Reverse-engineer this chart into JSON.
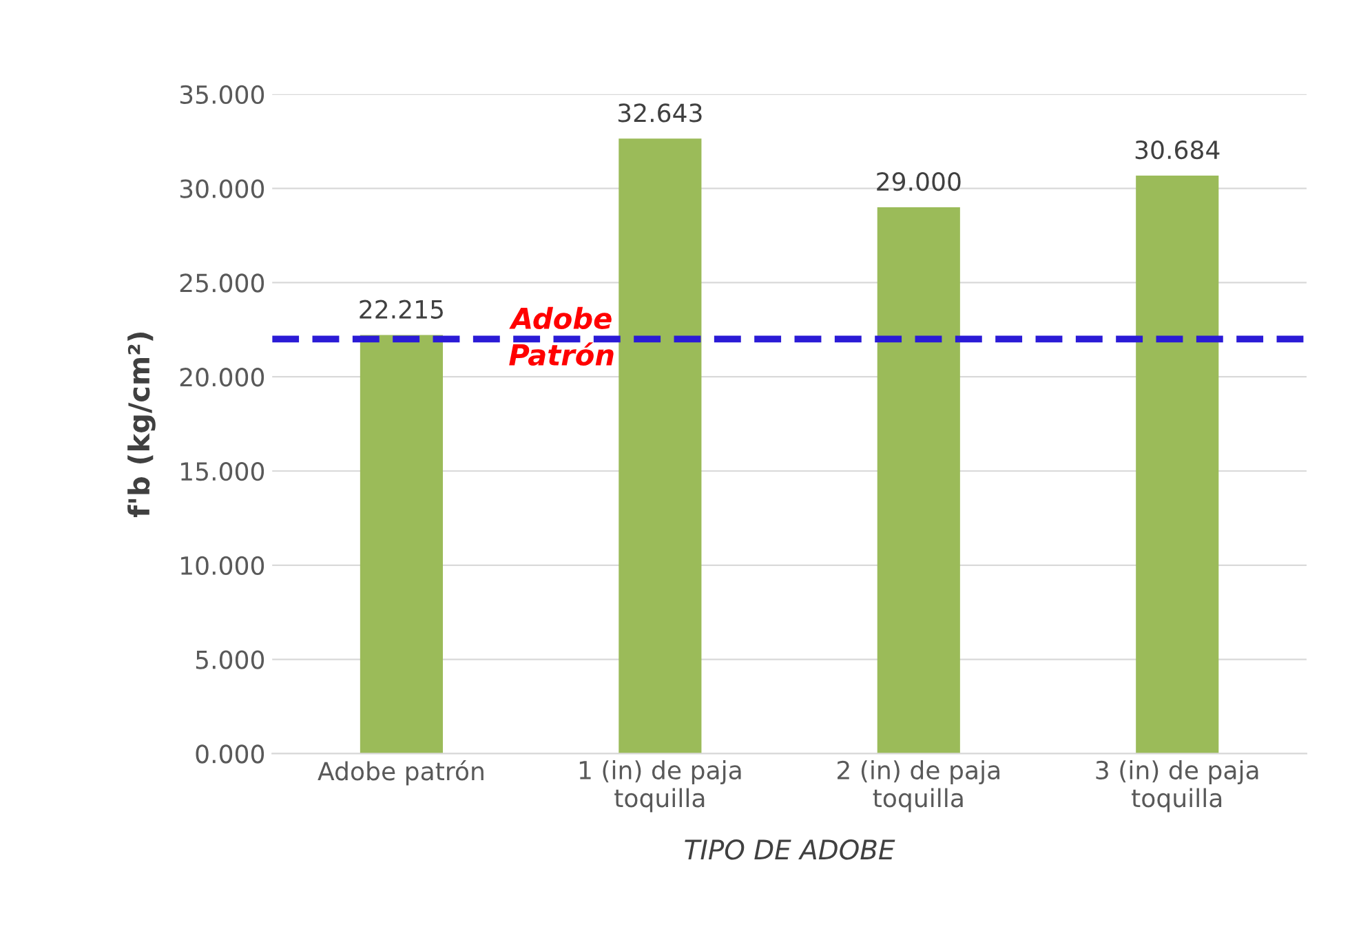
{
  "chart_data": {
    "type": "bar",
    "xlabel": "TIPO DE ADOBE",
    "ylabel": "f'b (kg/cm²)",
    "categories": [
      "Adobe patrón",
      "1 (in) de paja\ntoquilla",
      "2 (in) de paja\ntoquilla",
      "3 (in) de paja\ntoquilla"
    ],
    "values": [
      22.215,
      32.643,
      29.0,
      30.684
    ],
    "value_labels": [
      "22.215",
      "32.643",
      "29.000",
      "30.684"
    ],
    "color": "#9bbb59",
    "ylim": [
      0,
      35
    ],
    "yticks": [
      {
        "value": 0,
        "label": "0.000"
      },
      {
        "value": 5,
        "label": "5.000"
      },
      {
        "value": 10,
        "label": "10.000"
      },
      {
        "value": 15,
        "label": "15.000"
      },
      {
        "value": 20,
        "label": "20.000"
      },
      {
        "value": 25,
        "label": "25.000"
      },
      {
        "value": 30,
        "label": "30.000"
      },
      {
        "value": 35,
        "label": "35.000"
      }
    ],
    "grid": "y",
    "ref_lines": [
      {
        "axis": "y",
        "value": 22,
        "label": "Adobe\nPatrón",
        "color": "#2b1bd6",
        "line_style": "dashed"
      }
    ]
  }
}
